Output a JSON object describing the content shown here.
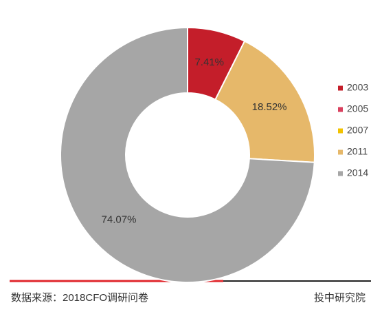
{
  "chart_data": {
    "type": "donut",
    "categories": [
      "2003",
      "2005",
      "2007",
      "2011",
      "2014"
    ],
    "values": [
      7.41,
      0,
      0,
      18.52,
      74.07
    ],
    "value_labels": [
      "7.41%",
      null,
      null,
      "18.52%",
      "74.07%"
    ],
    "colors": [
      "#c41e2a",
      "#d9405e",
      "#f2c200",
      "#e6b86a",
      "#a6a6a6"
    ],
    "legend": "right"
  },
  "footer": {
    "source": "数据来源：2018CFO调研问卷",
    "publisher": "投中研究院"
  }
}
